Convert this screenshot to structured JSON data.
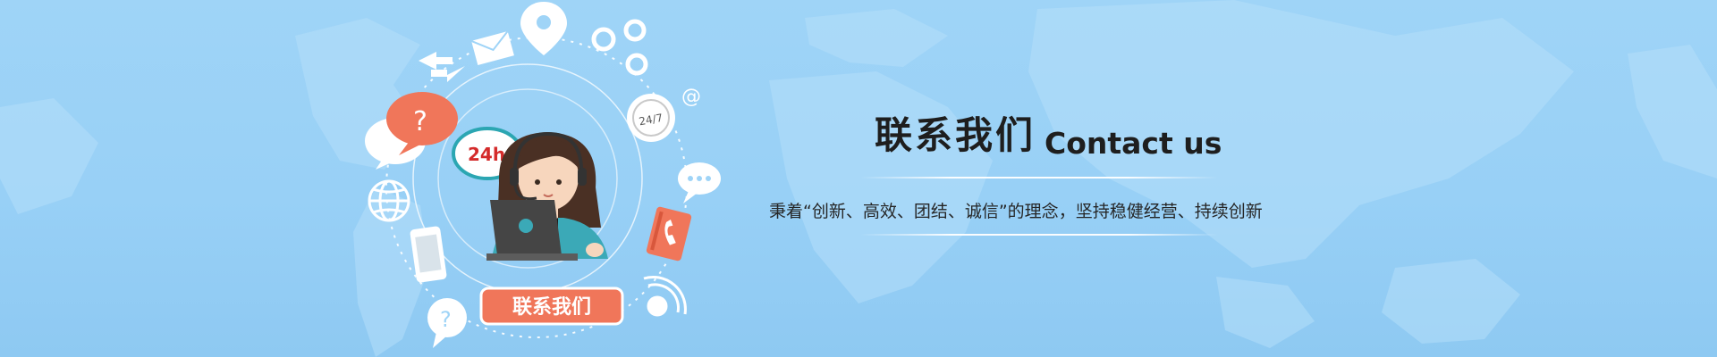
{
  "banner": {
    "title_cn": "联系我们",
    "title_en": "Contact us",
    "slogan": "秉着“创新、高效、团结、诚信”的理念，坚持稳健经营、持续创新"
  },
  "illustration": {
    "button_label": "联系我们",
    "badge_24h": "24h",
    "clock_label": "24/7",
    "at_symbol": "@",
    "question_mark": "?"
  },
  "colors": {
    "background": "#9fd4f7",
    "accent_orange": "#f0765a",
    "teal": "#2ba6b2",
    "text_dark": "#1e1e1e"
  }
}
